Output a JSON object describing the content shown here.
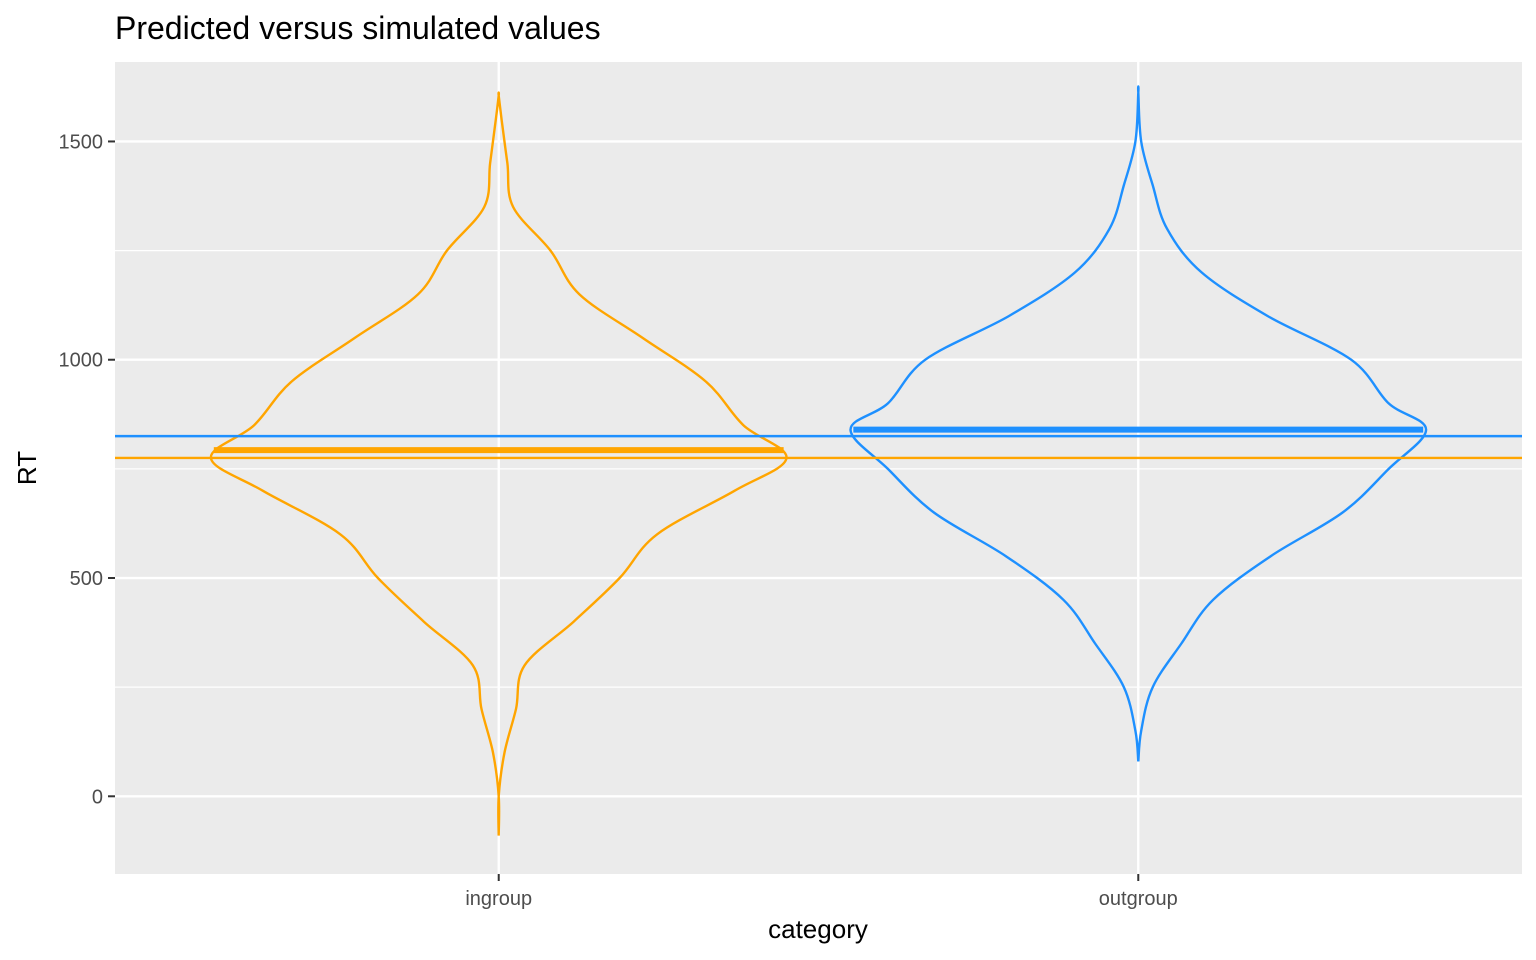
{
  "chart_data": {
    "type": "violin",
    "title": "Predicted versus simulated values",
    "xlabel": "category",
    "ylabel": "RT",
    "categories": [
      "ingroup",
      "outgroup"
    ],
    "ylim": [
      -178,
      1682
    ],
    "yticks": [
      0,
      500,
      1000,
      1500
    ],
    "ytick_labels": [
      "0",
      "500",
      "1000",
      "1500"
    ],
    "grid": true,
    "legend": "none",
    "series": [
      {
        "category": "ingroup",
        "color": "#FFA500",
        "y_min": -90,
        "y_max": 1605,
        "simulated_mean": 793,
        "predicted_value": 775,
        "profile": [
          [
            -90,
            0.0
          ],
          [
            0,
            0.0
          ],
          [
            100,
            0.02
          ],
          [
            200,
            0.06
          ],
          [
            300,
            0.09
          ],
          [
            400,
            0.26
          ],
          [
            500,
            0.42
          ],
          [
            600,
            0.55
          ],
          [
            700,
            0.82
          ],
          [
            775,
            1.0
          ],
          [
            850,
            0.85
          ],
          [
            950,
            0.72
          ],
          [
            1050,
            0.5
          ],
          [
            1150,
            0.28
          ],
          [
            1250,
            0.18
          ],
          [
            1350,
            0.05
          ],
          [
            1450,
            0.03
          ],
          [
            1550,
            0.01
          ],
          [
            1605,
            0.0
          ]
        ]
      },
      {
        "category": "outgroup",
        "color": "#1E90FF",
        "y_min": 80,
        "y_max": 1612,
        "simulated_mean": 840,
        "predicted_value": 825,
        "profile": [
          [
            80,
            0.0
          ],
          [
            150,
            0.01
          ],
          [
            250,
            0.05
          ],
          [
            350,
            0.15
          ],
          [
            450,
            0.26
          ],
          [
            550,
            0.46
          ],
          [
            650,
            0.71
          ],
          [
            750,
            0.87
          ],
          [
            840,
            1.0
          ],
          [
            900,
            0.87
          ],
          [
            1000,
            0.74
          ],
          [
            1100,
            0.45
          ],
          [
            1200,
            0.22
          ],
          [
            1300,
            0.1
          ],
          [
            1400,
            0.05
          ],
          [
            1500,
            0.01
          ],
          [
            1612,
            0.0
          ]
        ]
      }
    ]
  }
}
